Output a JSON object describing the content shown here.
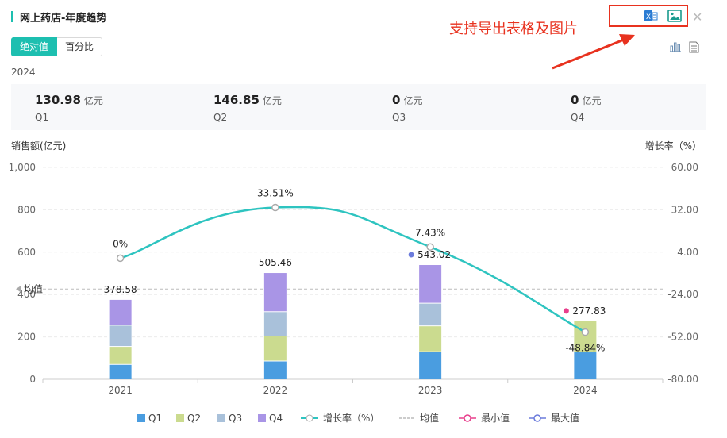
{
  "header": {
    "title": "网上药店-年度趋势",
    "annotation": "支持导出表格及图片"
  },
  "toggle": {
    "absolute": "绝对值",
    "percent": "百分比"
  },
  "selected_year": "2024",
  "kpis": [
    {
      "value": "130.98",
      "unit": "亿元",
      "label": "Q1"
    },
    {
      "value": "146.85",
      "unit": "亿元",
      "label": "Q2"
    },
    {
      "value": "0",
      "unit": "亿元",
      "label": "Q3"
    },
    {
      "value": "0",
      "unit": "亿元",
      "label": "Q4"
    }
  ],
  "icons": [
    "excel-export-icon",
    "image-export-icon",
    "close-icon",
    "bar-chart-view-icon",
    "table-view-icon"
  ],
  "colors": {
    "accent": "#1dbfb0",
    "annotation": "#e8321f",
    "q1": "#4a9de0",
    "q2": "#cbdb8f",
    "q3": "#a9c1da",
    "q4": "#a995e6",
    "growth": "#2ec4c0",
    "min": "#e83e8c",
    "max": "#6b7bdc"
  },
  "chart_data": {
    "type": "bar",
    "stacked": true,
    "categories": [
      "2021",
      "2022",
      "2023",
      "2024"
    ],
    "series": [
      {
        "name": "Q1",
        "values": [
          72,
          88,
          132,
          130.98
        ]
      },
      {
        "name": "Q2",
        "values": [
          85,
          118,
          122,
          146.85
        ]
      },
      {
        "name": "Q3",
        "values": [
          100,
          115,
          107,
          0
        ]
      },
      {
        "name": "Q4",
        "values": [
          121.58,
          184.46,
          182.02,
          0
        ]
      }
    ],
    "totals": [
      378.58,
      505.46,
      543.02,
      277.83
    ],
    "total_labels": [
      "378.58",
      "505.46",
      "543.02",
      "277.83"
    ],
    "growth": {
      "name": "增长率（%）",
      "values": [
        0,
        33.51,
        7.43,
        -48.84
      ],
      "labels": [
        "0%",
        "33.51%",
        "7.43%",
        "-48.84%"
      ]
    },
    "average_label": "均值",
    "average_value": 426,
    "max_index": 2,
    "min_index": 3,
    "ylabel_left": "销售额(亿元)",
    "ylabel_right": "增长率（%）",
    "ylim_left": [
      0,
      1000
    ],
    "yticks_left": [
      "0",
      "200",
      "400",
      "600",
      "800",
      "1,000"
    ],
    "ylim_right": [
      -80,
      60
    ],
    "yticks_right": [
      "-80.00",
      "-52.00",
      "-24.00",
      "4.00",
      "32.00",
      "60.00"
    ],
    "legend": [
      "Q1",
      "Q2",
      "Q3",
      "Q4",
      "增长率（%）",
      "均值",
      "最小值",
      "最大值"
    ],
    "legend_position": "bottom",
    "grid": true
  }
}
